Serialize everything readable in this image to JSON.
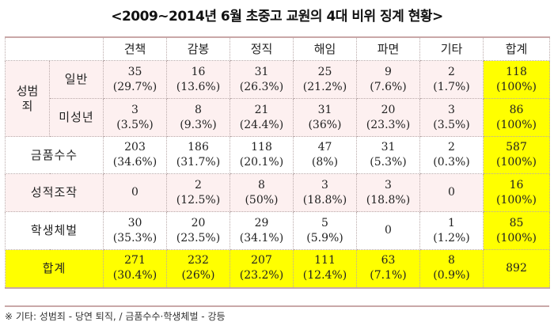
{
  "title": "<2009~2014년 6월 초중고 교원의 4대 비위 징계 현황>",
  "columns": [
    "견책",
    "감봉",
    "정직",
    "해임",
    "파면",
    "기타",
    "합계"
  ],
  "group_label": "성범죄",
  "rows": [
    {
      "label": "일반",
      "cells": [
        [
          "35",
          "(29.7%)"
        ],
        [
          "16",
          "(13.6%)"
        ],
        [
          "31",
          "(26.3%)"
        ],
        [
          "25",
          "(21.2%)"
        ],
        [
          "9",
          "(7.6%)"
        ],
        [
          "2",
          "(1.7%)"
        ],
        [
          "118",
          "(100%)"
        ]
      ]
    },
    {
      "label": "미성년",
      "cells": [
        [
          "3",
          "(3.5%)"
        ],
        [
          "8",
          "(9.3%)"
        ],
        [
          "21",
          "(24.4%)"
        ],
        [
          "31",
          "(36%)"
        ],
        [
          "20",
          "(23.3%)"
        ],
        [
          "3",
          "(3.5%)"
        ],
        [
          "86",
          "(100%)"
        ]
      ]
    },
    {
      "label": "금품수수",
      "cells": [
        [
          "203",
          "(34.6%)"
        ],
        [
          "186",
          "(31.7%)"
        ],
        [
          "118",
          "(20.1%)"
        ],
        [
          "47",
          "(8%)"
        ],
        [
          "31",
          "(5.3%)"
        ],
        [
          "2",
          "(0.3%)"
        ],
        [
          "587",
          "(100%)"
        ]
      ]
    },
    {
      "label": "성적조작",
      "cells": [
        [
          "0",
          ""
        ],
        [
          "2",
          "(12.5%)"
        ],
        [
          "8",
          "(50%)"
        ],
        [
          "3",
          "(18.8%)"
        ],
        [
          "3",
          "(18.8%)"
        ],
        [
          "0",
          ""
        ],
        [
          "16",
          "(100%)"
        ]
      ]
    },
    {
      "label": "학생체벌",
      "cells": [
        [
          "30",
          "(35.3%)"
        ],
        [
          "20",
          "(23.5%)"
        ],
        [
          "29",
          "(34.1%)"
        ],
        [
          "5",
          "(5.9%)"
        ],
        [
          "0",
          ""
        ],
        [
          "1",
          "(1.2%)"
        ],
        [
          "85",
          "(100%)"
        ]
      ]
    },
    {
      "label": "합계",
      "cells": [
        [
          "271",
          "(30.4%)"
        ],
        [
          "232",
          "(26%)"
        ],
        [
          "207",
          "(23.2%)"
        ],
        [
          "111",
          "(12.4%)"
        ],
        [
          "63",
          "(7.1%)"
        ],
        [
          "8",
          "(0.9%)"
        ],
        [
          "892",
          ""
        ]
      ]
    }
  ],
  "note": "※ 기타: 성범죄 - 당연 퇴직, / 금품수수·학생체벌 - 강등",
  "colors": {
    "highlight": "#ffff00",
    "pink_row": "#fdf0f0",
    "border": "#c9a8a8"
  }
}
